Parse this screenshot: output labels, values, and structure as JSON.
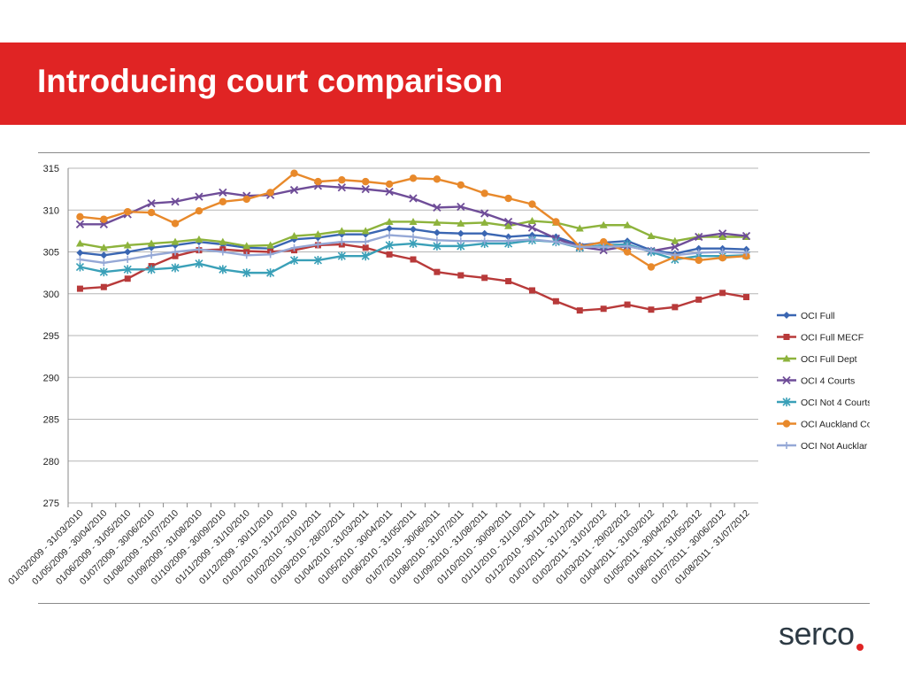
{
  "slide": {
    "title": "Introducing court comparison",
    "banner_color": "#e02424",
    "logo_text": "serco"
  },
  "chart_data": {
    "type": "line",
    "ylim": [
      275,
      315
    ],
    "yticks": [
      275,
      280,
      285,
      290,
      295,
      300,
      305,
      310,
      315
    ],
    "grid": "horizontal",
    "legend_position": "right",
    "categories": [
      "01/03/2009 - 31/03/2010",
      "01/05/2009 - 30/04/2010",
      "01/06/2009 - 31/05/2010",
      "01/07/2009 - 30/06/2010",
      "01/08/2009 - 31/07/2010",
      "01/09/2009 - 31/08/2010",
      "01/10/2009 - 30/09/2010",
      "01/11/2009 - 31/10/2010",
      "01/12/2009 - 30/11/2010",
      "01/01/2010 - 31/12/2010",
      "01/02/2010 - 31/01/2011",
      "01/03/2010 - 28/02/2011",
      "01/04/2010 - 31/03/2011",
      "01/05/2010 - 30/04/2011",
      "01/06/2010 - 31/05/2011",
      "01/07/2010 - 30/06/2011",
      "01/08/2010 - 31/07/2011",
      "01/09/2010 - 31/08/2011",
      "01/10/2010 - 30/09/2011",
      "01/11/2010 - 31/10/2011",
      "01/12/2010 - 30/11/2011",
      "01/01/2011 - 31/12/2011",
      "01/02/2011 - 31/01/2012",
      "01/03/2011 - 29/02/2012",
      "01/04/2011 - 31/03/2012",
      "01/05/2011 - 30/04/2012",
      "01/06/2011 - 31/05/2012",
      "01/07/2011 - 30/06/2012",
      "01/08/2011 - 31/07/2012"
    ],
    "series": [
      {
        "name": "OCI Full",
        "color": "#3a66b2",
        "marker": "diamond",
        "values": [
          304.9,
          304.6,
          305.0,
          305.5,
          305.8,
          306.2,
          305.9,
          305.5,
          305.4,
          306.5,
          306.7,
          307.1,
          307.1,
          307.8,
          307.7,
          307.3,
          307.2,
          307.2,
          306.8,
          307.0,
          306.8,
          305.8,
          306.1,
          306.3,
          305.2,
          304.8,
          305.4,
          305.4,
          305.3
        ]
      },
      {
        "name": "OCI Full MECF",
        "color": "#b83a3a",
        "marker": "square",
        "values": [
          300.6,
          300.8,
          301.8,
          303.3,
          304.5,
          305.2,
          305.3,
          305.1,
          305.0,
          305.2,
          305.8,
          305.9,
          305.5,
          304.7,
          304.1,
          302.6,
          302.2,
          301.9,
          301.5,
          300.4,
          299.1,
          298.0,
          298.2,
          298.7,
          298.1,
          298.4,
          299.3,
          300.1,
          299.6
        ]
      },
      {
        "name": "OCI Full Dept",
        "color": "#8db33c",
        "marker": "triangle",
        "values": [
          306.0,
          305.5,
          305.8,
          306.0,
          306.2,
          306.5,
          306.2,
          305.7,
          305.8,
          306.9,
          307.1,
          307.5,
          307.5,
          308.6,
          308.6,
          308.5,
          308.4,
          308.5,
          308.1,
          308.7,
          308.5,
          307.8,
          308.2,
          308.2,
          306.9,
          306.3,
          306.8,
          306.8,
          306.8
        ]
      },
      {
        "name": "OCI 4 Courts",
        "color": "#6f4d98",
        "marker": "x",
        "values": [
          308.3,
          308.3,
          309.5,
          310.8,
          311.0,
          311.6,
          312.1,
          311.7,
          311.8,
          312.4,
          312.9,
          312.7,
          312.5,
          312.2,
          311.4,
          310.3,
          310.4,
          309.6,
          308.6,
          307.9,
          306.6,
          305.6,
          305.2,
          305.7,
          305.1,
          305.6,
          306.8,
          307.2,
          306.9
        ]
      },
      {
        "name": "OCI Not 4 Courts",
        "color": "#3aa0b8",
        "marker": "star",
        "values": [
          303.2,
          302.6,
          302.9,
          302.9,
          303.1,
          303.6,
          302.9,
          302.5,
          302.5,
          304.0,
          304.0,
          304.5,
          304.5,
          305.8,
          306.0,
          305.7,
          305.7,
          306.0,
          306.0,
          306.4,
          306.2,
          305.5,
          305.8,
          305.9,
          305.0,
          304.1,
          304.5,
          304.5,
          304.6
        ]
      },
      {
        "name": "OCI Auckland Co",
        "color": "#e8892b",
        "marker": "circle",
        "values": [
          309.2,
          308.9,
          309.8,
          309.7,
          308.4,
          309.9,
          311.0,
          311.3,
          312.1,
          314.4,
          313.4,
          313.6,
          313.4,
          313.1,
          313.8,
          313.7,
          313.0,
          312.0,
          311.4,
          310.7,
          308.6,
          305.6,
          306.2,
          305.0,
          303.2,
          304.4,
          304.0,
          304.3,
          304.5
        ]
      },
      {
        "name": "OCI Not Aucklar",
        "color": "#95a8d6",
        "marker": "plus",
        "values": [
          304.1,
          303.7,
          304.1,
          304.6,
          305.0,
          305.3,
          305.0,
          304.6,
          304.7,
          305.5,
          305.9,
          306.2,
          306.2,
          307.0,
          306.8,
          306.4,
          306.3,
          306.3,
          306.3,
          306.5,
          306.2,
          305.6,
          305.6,
          305.7,
          305.1,
          304.6,
          304.9,
          305.0,
          304.9
        ]
      }
    ]
  }
}
